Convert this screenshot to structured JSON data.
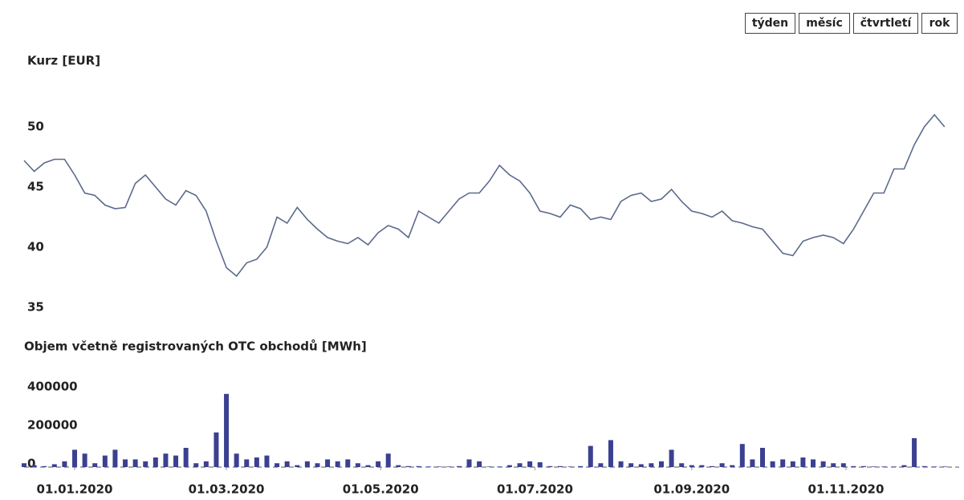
{
  "buttons": [
    "týden",
    "měsíc",
    "čtvrtletí",
    "rok"
  ],
  "chart_data": [
    {
      "type": "line",
      "title": "Kurz [EUR]",
      "color": "#5b6a8c",
      "x": [
        "2019-12-12",
        "2019-12-16",
        "2019-12-20",
        "2019-12-24",
        "2019-12-28",
        "2020-01-01",
        "2020-01-05",
        "2020-01-09",
        "2020-01-13",
        "2020-01-17",
        "2020-01-21",
        "2020-01-25",
        "2020-01-29",
        "2020-02-02",
        "2020-02-06",
        "2020-02-10",
        "2020-02-14",
        "2020-02-18",
        "2020-02-22",
        "2020-02-26",
        "2020-03-01",
        "2020-03-05",
        "2020-03-09",
        "2020-03-13",
        "2020-03-17",
        "2020-03-21",
        "2020-03-25",
        "2020-03-29",
        "2020-04-02",
        "2020-04-06",
        "2020-04-10",
        "2020-04-14",
        "2020-04-18",
        "2020-04-22",
        "2020-04-26",
        "2020-04-30",
        "2020-05-04",
        "2020-05-08",
        "2020-05-12",
        "2020-05-16",
        "2020-05-20",
        "2020-05-24",
        "2020-05-28",
        "2020-06-01",
        "2020-06-05",
        "2020-06-09",
        "2020-06-13",
        "2020-06-17",
        "2020-06-21",
        "2020-06-25",
        "2020-06-29",
        "2020-07-03",
        "2020-07-07",
        "2020-07-11",
        "2020-07-15",
        "2020-07-19",
        "2020-07-23",
        "2020-07-27",
        "2020-07-31",
        "2020-08-04",
        "2020-08-08",
        "2020-08-12",
        "2020-08-16",
        "2020-08-20",
        "2020-08-24",
        "2020-08-28",
        "2020-09-01",
        "2020-09-05",
        "2020-09-09",
        "2020-09-13",
        "2020-09-17",
        "2020-09-21",
        "2020-09-25",
        "2020-09-29",
        "2020-10-03",
        "2020-10-07",
        "2020-10-11",
        "2020-10-15",
        "2020-10-19",
        "2020-10-23",
        "2020-10-27",
        "2020-10-31",
        "2020-11-04",
        "2020-11-08",
        "2020-11-12",
        "2020-11-16",
        "2020-11-20",
        "2020-11-24",
        "2020-11-28",
        "2020-12-02",
        "2020-12-06",
        "2020-12-10"
      ],
      "values": [
        47.2,
        46.3,
        47.0,
        47.3,
        47.3,
        46.0,
        44.5,
        44.3,
        43.5,
        43.2,
        43.3,
        45.3,
        46.0,
        45.0,
        44.0,
        43.5,
        44.7,
        44.3,
        43.0,
        40.5,
        38.3,
        37.6,
        38.7,
        39.0,
        40.0,
        42.5,
        42.0,
        43.3,
        42.3,
        41.5,
        40.8,
        40.5,
        40.3,
        40.8,
        40.2,
        41.2,
        41.8,
        41.5,
        40.8,
        43.0,
        42.5,
        42.0,
        43.0,
        44.0,
        44.5,
        44.5,
        45.5,
        46.8,
        46.0,
        45.5,
        44.5,
        43.0,
        42.8,
        42.5,
        43.5,
        43.2,
        42.3,
        42.5,
        42.3,
        43.8,
        44.3,
        44.5,
        43.8,
        44.0,
        44.8,
        43.8,
        43.0,
        42.8,
        42.5,
        43.0,
        42.2,
        42.0,
        41.7,
        41.5,
        40.5,
        39.5,
        39.3,
        40.5,
        40.8,
        41.0,
        40.8,
        40.3,
        41.5,
        43.0,
        44.5,
        44.5,
        46.5,
        46.5,
        48.5,
        50.0,
        51.0,
        50.0
      ],
      "xlim": [
        "2019-12-12",
        "2020-12-11"
      ],
      "ylim": [
        35,
        52
      ],
      "yticks": [
        35,
        40,
        45,
        50
      ]
    },
    {
      "type": "bar",
      "title": "Objem včetně registrovaných OTC obchodů [MWh]",
      "color": "#3b4090",
      "x": [
        "2019-12-12",
        "2019-12-16",
        "2019-12-20",
        "2019-12-24",
        "2019-12-28",
        "2020-01-01",
        "2020-01-05",
        "2020-01-09",
        "2020-01-13",
        "2020-01-17",
        "2020-01-21",
        "2020-01-25",
        "2020-01-29",
        "2020-02-02",
        "2020-02-06",
        "2020-02-10",
        "2020-02-14",
        "2020-02-18",
        "2020-02-22",
        "2020-02-26",
        "2020-03-01",
        "2020-03-05",
        "2020-03-09",
        "2020-03-13",
        "2020-03-17",
        "2020-03-21",
        "2020-03-25",
        "2020-03-29",
        "2020-04-02",
        "2020-04-06",
        "2020-04-10",
        "2020-04-14",
        "2020-04-18",
        "2020-04-22",
        "2020-04-26",
        "2020-04-30",
        "2020-05-04",
        "2020-05-08",
        "2020-05-12",
        "2020-05-16",
        "2020-05-20",
        "2020-05-24",
        "2020-05-28",
        "2020-06-01",
        "2020-06-05",
        "2020-06-09",
        "2020-06-13",
        "2020-06-17",
        "2020-06-21",
        "2020-06-25",
        "2020-06-29",
        "2020-07-03",
        "2020-07-07",
        "2020-07-11",
        "2020-07-15",
        "2020-07-19",
        "2020-07-23",
        "2020-07-27",
        "2020-07-31",
        "2020-08-04",
        "2020-08-08",
        "2020-08-12",
        "2020-08-16",
        "2020-08-20",
        "2020-08-24",
        "2020-08-28",
        "2020-09-01",
        "2020-09-05",
        "2020-09-09",
        "2020-09-13",
        "2020-09-17",
        "2020-09-21",
        "2020-09-25",
        "2020-09-29",
        "2020-10-03",
        "2020-10-07",
        "2020-10-11",
        "2020-10-15",
        "2020-10-19",
        "2020-10-23",
        "2020-10-27",
        "2020-10-31",
        "2020-11-04",
        "2020-11-08",
        "2020-11-12",
        "2020-11-16",
        "2020-11-20",
        "2020-11-24",
        "2020-11-28",
        "2020-12-02",
        "2020-12-06",
        "2020-12-10"
      ],
      "values": [
        20000,
        10000,
        5000,
        15000,
        30000,
        90000,
        70000,
        20000,
        60000,
        90000,
        40000,
        40000,
        30000,
        50000,
        70000,
        60000,
        100000,
        20000,
        30000,
        180000,
        380000,
        70000,
        40000,
        50000,
        60000,
        20000,
        30000,
        10000,
        30000,
        20000,
        40000,
        30000,
        40000,
        20000,
        10000,
        30000,
        70000,
        10000,
        5000,
        5000,
        3000,
        3000,
        3000,
        5000,
        40000,
        30000,
        3000,
        3000,
        10000,
        20000,
        30000,
        25000,
        5000,
        5000,
        3000,
        5000,
        110000,
        20000,
        140000,
        30000,
        20000,
        15000,
        20000,
        30000,
        90000,
        20000,
        10000,
        10000,
        5000,
        20000,
        10000,
        120000,
        40000,
        100000,
        30000,
        40000,
        30000,
        50000,
        40000,
        30000,
        20000,
        20000,
        5000,
        5000,
        3000,
        3000,
        3000,
        10000,
        150000,
        5000,
        3000,
        3000
      ],
      "xlim": [
        "2019-12-12",
        "2020-12-11"
      ],
      "ylim": [
        0,
        400000
      ],
      "yticks": [
        0,
        200000,
        400000
      ],
      "xticks": [
        {
          "value": "2020-01-01",
          "label": "01.01.2020"
        },
        {
          "value": "2020-03-01",
          "label": "01.03.2020"
        },
        {
          "value": "2020-05-01",
          "label": "01.05.2020"
        },
        {
          "value": "2020-07-01",
          "label": "01.07.2020"
        },
        {
          "value": "2020-09-01",
          "label": "01.09.2020"
        },
        {
          "value": "2020-11-01",
          "label": "01.11.2020"
        }
      ]
    }
  ]
}
